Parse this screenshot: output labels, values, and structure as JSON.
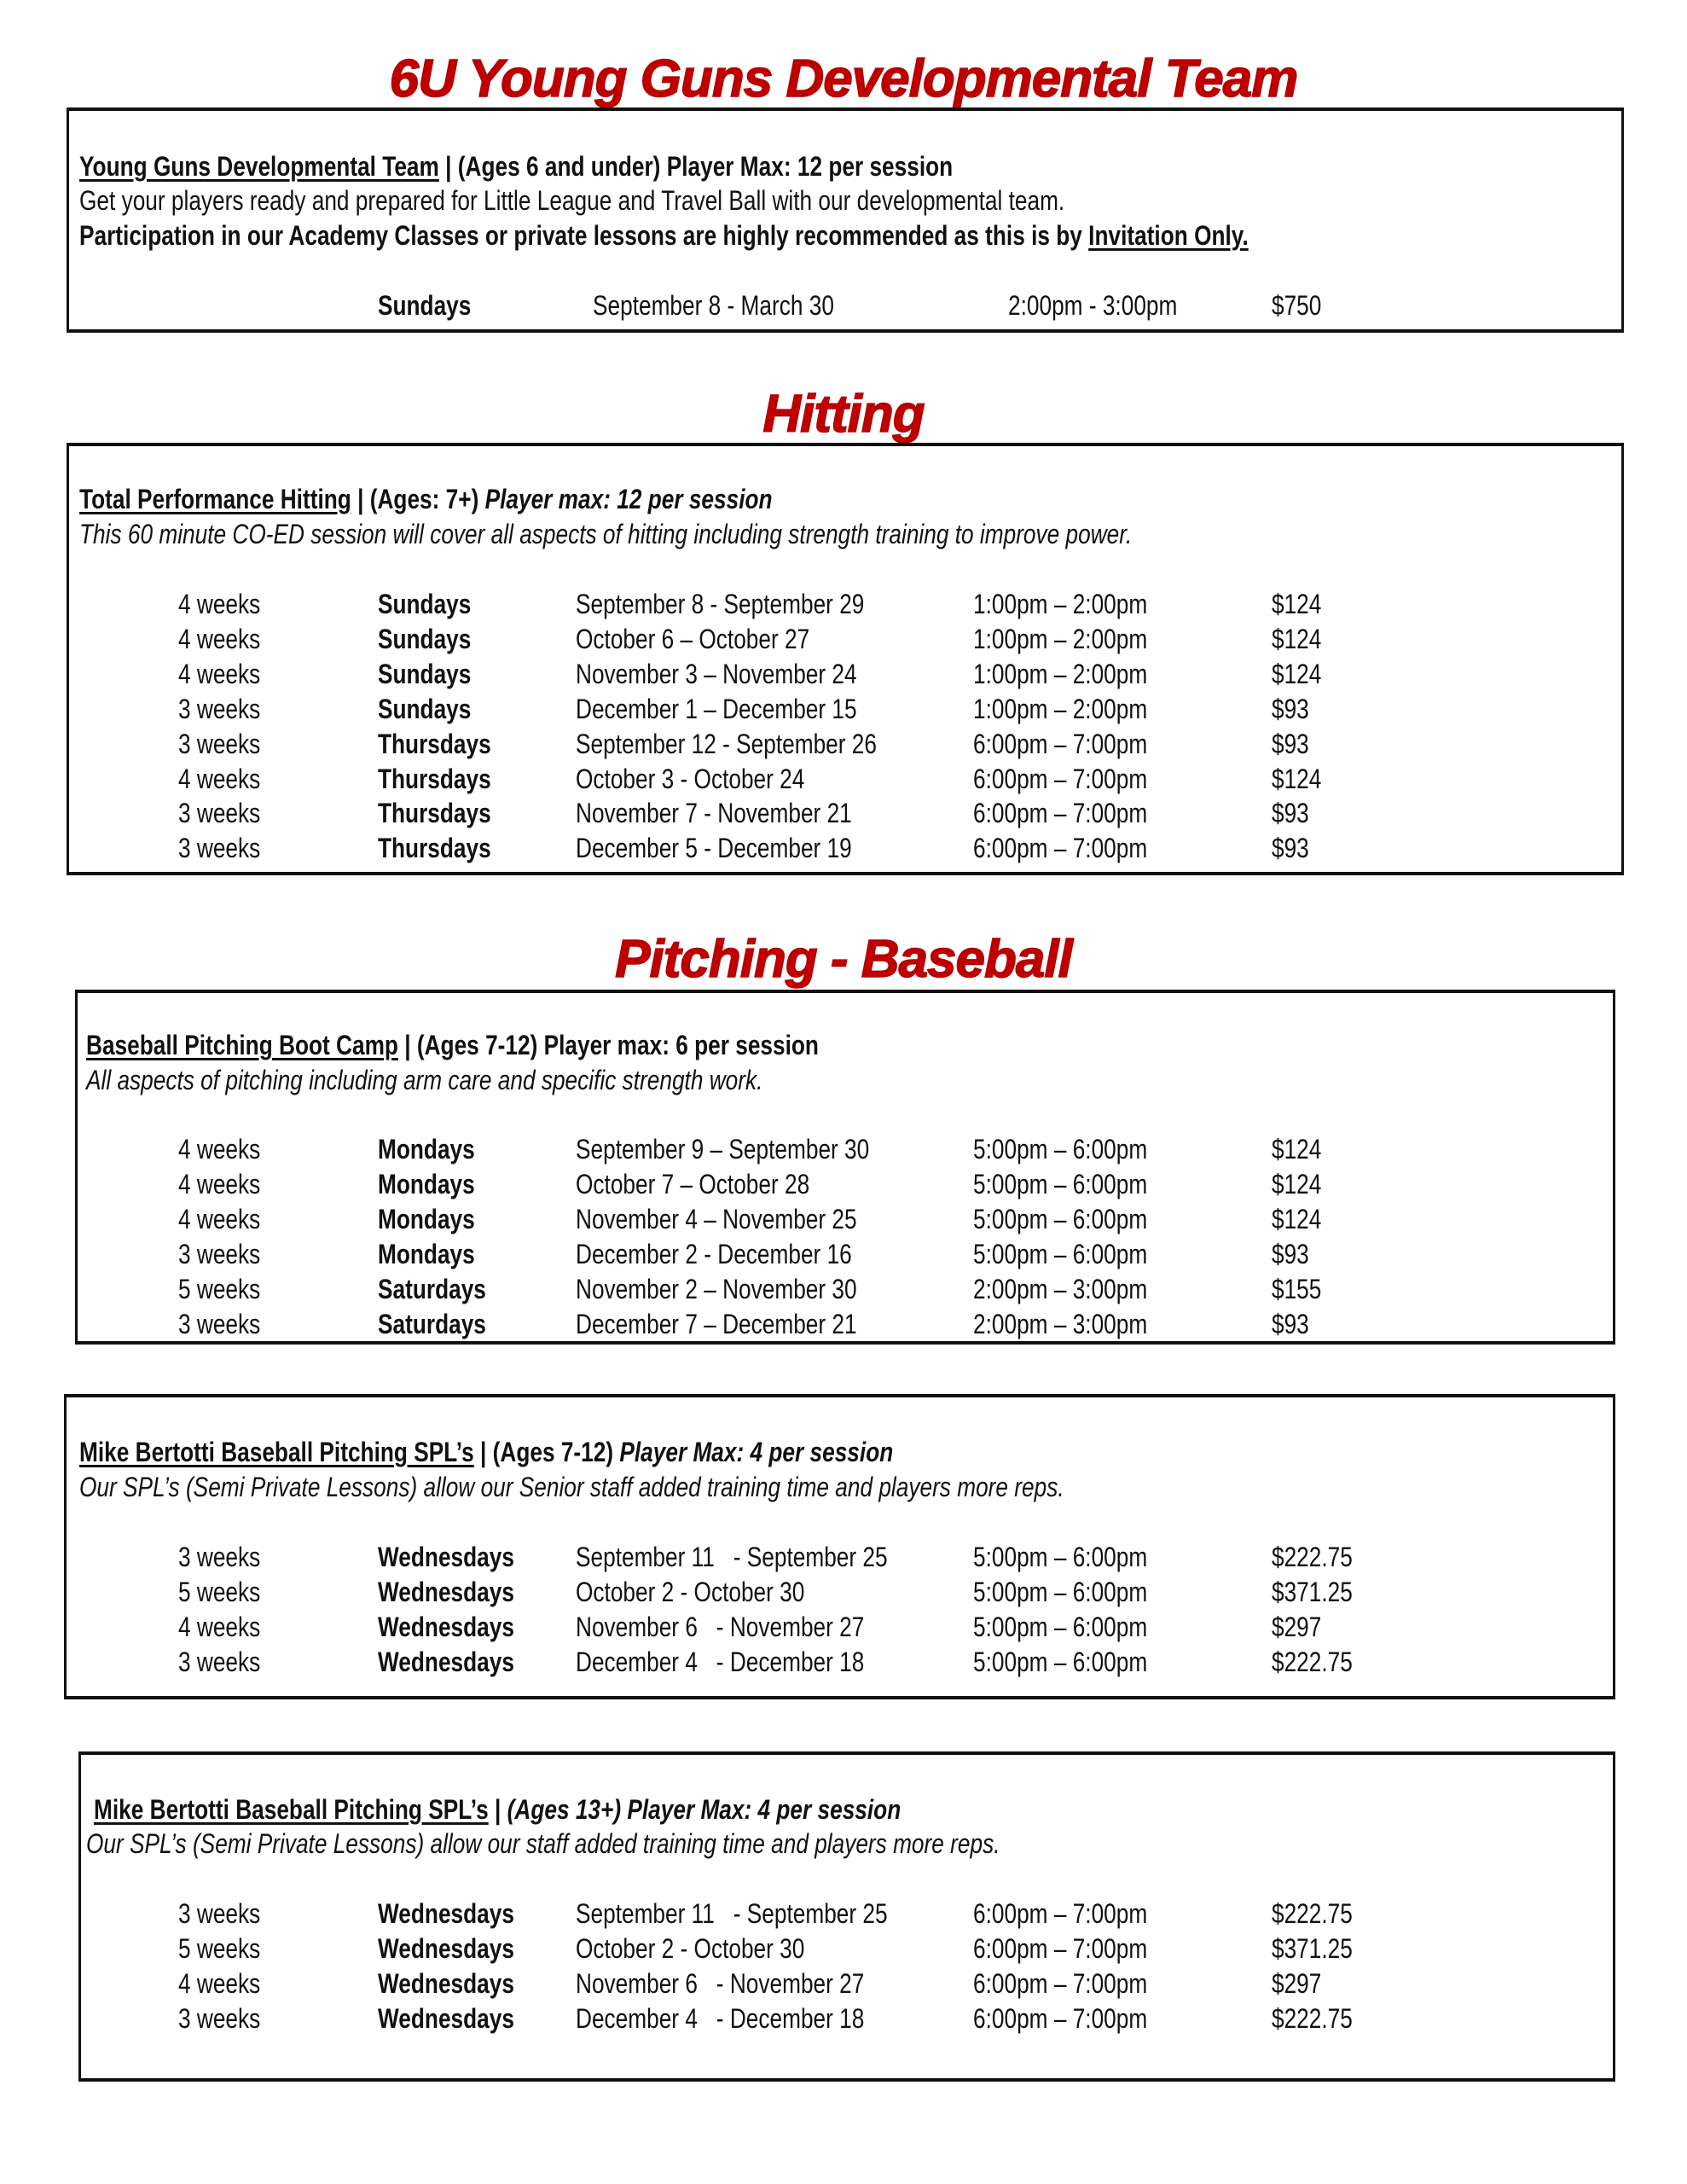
{
  "sections": {
    "youth": {
      "title": "6U Young Guns Developmental Team",
      "heading": {
        "name": "Young Guns Developmental Team",
        "sep": " | ",
        "ages": "(Ages 6 and under) ",
        "max": "Player Max: 12 per session"
      },
      "desc": "Get your players ready and prepared for Little League and Travel Ball with our developmental team.",
      "note": "Participation in our Academy Classes or private lessons are highly recommended as this is by ",
      "note_link": "Invitation Only.",
      "schedule": {
        "day": "Sundays",
        "dates": "September 8 - March 30",
        "time": "2:00pm - 3:00pm",
        "price": "$750"
      }
    },
    "hitting": {
      "title": "Hitting",
      "heading": {
        "name": "Total Performance Hitting",
        "sep": " | ",
        "ages": "(Ages: 7+) ",
        "max": "Player max: 12 per session"
      },
      "desc": "This 60 minute CO-ED session will cover all aspects of hitting including strength training to improve power.",
      "rows": [
        [
          "4 weeks",
          "Sundays",
          "September 8 - September 29",
          "1:00pm – 2:00pm",
          "$124"
        ],
        [
          "4 weeks",
          "Sundays",
          "October 6 – October 27",
          "1:00pm – 2:00pm",
          "$124"
        ],
        [
          "4 weeks",
          "Sundays",
          "November 3 – November 24",
          "1:00pm – 2:00pm",
          "$124"
        ],
        [
          "3 weeks",
          "Sundays",
          "December 1 – December 15",
          "1:00pm – 2:00pm",
          "$93"
        ],
        [
          "3 weeks",
          "Thursdays",
          "September 12 - September 26",
          "6:00pm – 7:00pm",
          "$93"
        ],
        [
          "4 weeks",
          "Thursdays",
          "October 3 - October 24",
          "6:00pm – 7:00pm",
          "$124"
        ],
        [
          "3 weeks",
          "Thursdays",
          "November 7 - November 21",
          "6:00pm – 7:00pm",
          "$93"
        ],
        [
          "3 weeks",
          "Thursdays",
          "December 5 - December 19",
          "6:00pm – 7:00pm",
          "$93"
        ]
      ]
    },
    "pitching": {
      "title": "Pitching - Baseball",
      "heading": {
        "name": "Baseball Pitching Boot Camp",
        "sep": " | ",
        "ages": "(Ages 7-12) ",
        "max": "Player max: 6 per session"
      },
      "desc": "All aspects of pitching including arm care and specific strength work.",
      "rows": [
        [
          "4 weeks",
          "Mondays",
          "September 9 – September 30",
          "5:00pm – 6:00pm",
          "$124"
        ],
        [
          "4 weeks",
          "Mondays",
          "October 7 – October 28",
          "5:00pm – 6:00pm",
          "$124"
        ],
        [
          "4 weeks",
          "Mondays",
          "November 4 – November 25",
          "5:00pm – 6:00pm",
          "$124"
        ],
        [
          "3 weeks",
          "Mondays",
          "December 2 - December 16",
          "5:00pm – 6:00pm",
          "$93"
        ],
        [
          "5 weeks",
          "Saturdays",
          "November 2 – November 30",
          "2:00pm – 3:00pm",
          "$155"
        ],
        [
          "3 weeks",
          "Saturdays",
          "December 7 – December 21",
          "2:00pm – 3:00pm",
          "$93"
        ]
      ]
    },
    "spl_youth": {
      "heading": {
        "name": "Mike Bertotti Baseball Pitching SPL’s",
        "sep": " | ",
        "ages": "(Ages 7-12) ",
        "max": "Player Max: 4 per session"
      },
      "desc": "Our SPL’s (Semi Private Lessons) allow our Senior staff added training time and players more reps.",
      "rows": [
        [
          "3 weeks",
          "Wednesdays",
          "September 11   - September 25",
          "5:00pm – 6:00pm",
          "$222.75"
        ],
        [
          "5 weeks",
          "Wednesdays",
          "October 2 - October 30",
          "5:00pm – 6:00pm",
          "$371.25"
        ],
        [
          "4 weeks",
          "Wednesdays",
          "November 6   - November 27",
          "5:00pm – 6:00pm",
          "$297"
        ],
        [
          "3 weeks",
          "Wednesdays",
          "December 4   - December 18",
          "5:00pm – 6:00pm",
          "$222.75"
        ]
      ]
    },
    "spl_teen": {
      "heading": {
        "name": "Mike Bertotti Baseball Pitching SPL’s",
        "sep": " | ",
        "ages": "(Ages 13+) ",
        "max": "Player Max: 4 per session"
      },
      "desc": "Our SPL’s (Semi Private Lessons) allow our staff added training time and players more reps.",
      "rows": [
        [
          "3 weeks",
          "Wednesdays",
          "September 11   - September 25",
          "6:00pm – 7:00pm",
          "$222.75"
        ],
        [
          "5 weeks",
          "Wednesdays",
          "October 2 - October 30",
          "6:00pm – 7:00pm",
          "$371.25"
        ],
        [
          "4 weeks",
          "Wednesdays",
          "November 6   - November 27",
          "6:00pm – 7:00pm",
          "$297"
        ],
        [
          "3 weeks",
          "Wednesdays",
          "December 4   - December 18",
          "6:00pm – 7:00pm",
          "$222.75"
        ]
      ]
    }
  },
  "colors": {
    "title_red": "#c00000"
  }
}
